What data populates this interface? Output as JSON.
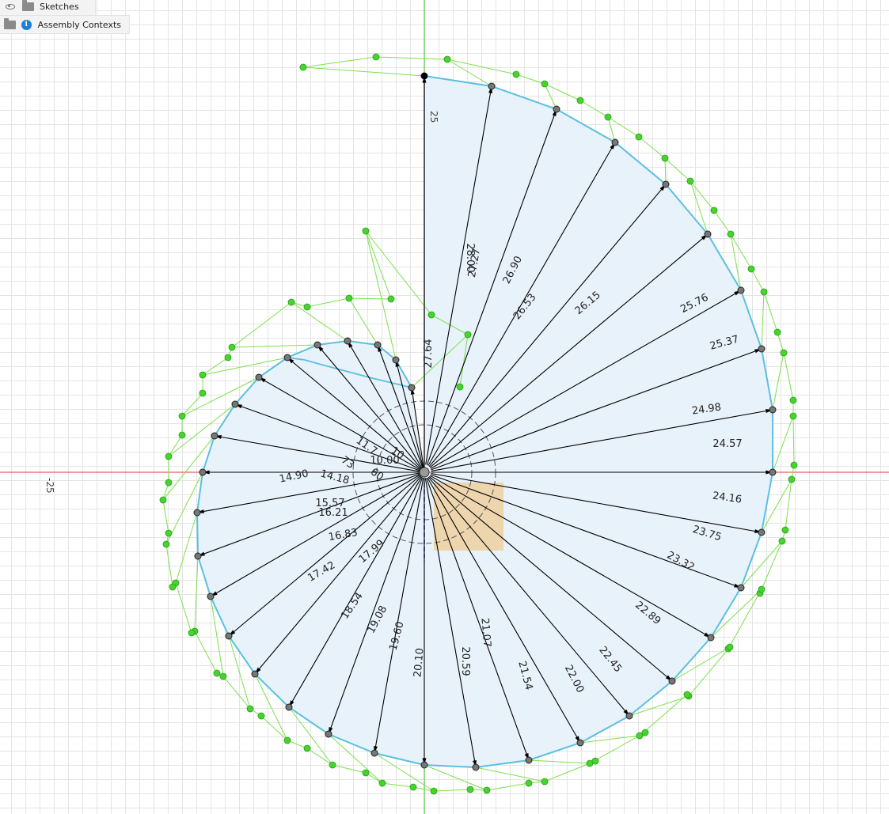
{
  "browser": {
    "items": [
      {
        "label": "Sketches",
        "icons": [
          "eye-icon",
          "folder-icon"
        ]
      },
      {
        "label": "Assembly Contexts",
        "icons": [
          "folder-icon",
          "info-icon"
        ]
      }
    ]
  },
  "axis": {
    "x_label": "-25",
    "y_label": "25"
  },
  "colors": {
    "background": "#ffffff",
    "grid": "#e4e4e4",
    "x_axis": "#e03a3a",
    "y_axis": "#3cc83c",
    "profile_fill": "#e8f2fb",
    "spline": "#5bc0de",
    "control_polygon": "#7de04a",
    "control_point": "#44d62c",
    "dimension": "#000000",
    "highlight_rect": "#f0c98c"
  },
  "dimensions": [
    "14.90",
    "14.18",
    "15.57",
    "16.21",
    "16.83",
    "17.42",
    "17.99",
    "18.54",
    "19.08",
    "19.60",
    "20.10",
    "20.59",
    "21.07",
    "21.54",
    "22.00",
    "22.45",
    "22.89",
    "23.32",
    "23.75",
    "24.16",
    "24.57",
    "24.98",
    "25.37",
    "25.76",
    "26.15",
    "26.53",
    "26.90",
    "27.27",
    "28.00",
    "27.64",
    "10.00",
    "73",
    "60",
    "11.7",
    "10"
  ]
}
